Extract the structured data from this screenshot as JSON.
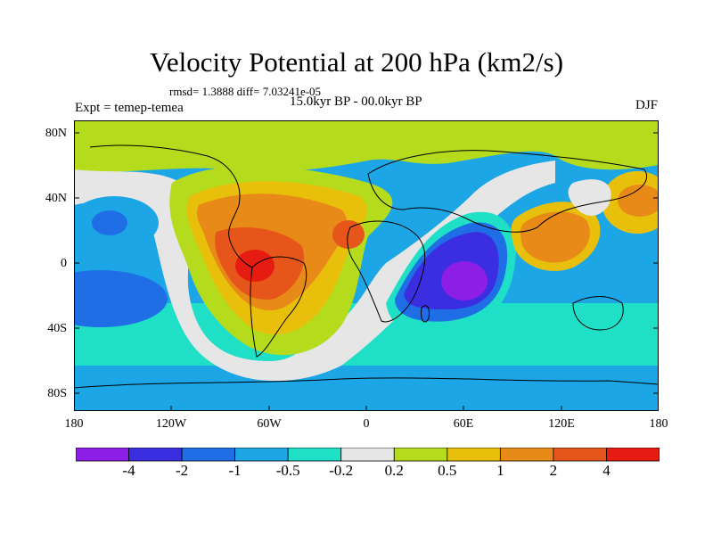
{
  "figure": {
    "title": "Velocity Potential at 200 hPa (km2/s)",
    "stats_line": "rmsd= 1.3888 diff= 7.03241e-05",
    "experiment_label": "Expt = temep-temea",
    "period_label": "15.0kyr BP - 00.0kyr BP",
    "season_label": "DJF"
  },
  "axes": {
    "lat_ticks": [
      "80N",
      "40N",
      "0",
      "40S",
      "80S"
    ],
    "lon_ticks": [
      "180",
      "120W",
      "60W",
      "0",
      "60E",
      "120E",
      "180"
    ]
  },
  "colorbar": {
    "colors": [
      "#8c1ee6",
      "#3b2ee0",
      "#1f6ee6",
      "#1ca6e6",
      "#1fe0c6",
      "#e6e6e6",
      "#b4dc1c",
      "#e8c00c",
      "#e88a18",
      "#e6561a",
      "#e61c12"
    ],
    "tick_labels": [
      "-4",
      "-2",
      "-1",
      "-0.5",
      "-0.2",
      "0.2",
      "0.5",
      "1",
      "2",
      "4"
    ]
  },
  "chart_data": {
    "type": "heatmap",
    "title": "Velocity Potential at 200 hPa (km2/s)",
    "variable": "Velocity Potential",
    "units": "km2/s",
    "level": "200 hPa",
    "x_range": [
      -180,
      180
    ],
    "y_range": [
      -90,
      90
    ],
    "contour_levels": [
      -4,
      -2,
      -1,
      -0.5,
      -0.2,
      0.2,
      0.5,
      1,
      2,
      4
    ],
    "features": [
      {
        "label": "positive maximum, central South America",
        "lon": -70,
        "lat": 0,
        "value": 4
      },
      {
        "label": "negative minimum, western Indian Ocean",
        "lon": 58,
        "lat": -10,
        "value": -4
      },
      {
        "label": "positive, Southeast Asia",
        "lon": 110,
        "lat": 18,
        "value": 2
      },
      {
        "label": "positive, NW Pacific",
        "lon": 165,
        "lat": 40,
        "value": 1
      },
      {
        "label": "negative, central Pacific",
        "lon": -155,
        "lat": 20,
        "value": -1
      },
      {
        "label": "negative, SE Pacific",
        "lon": -160,
        "lat": -25,
        "value": -2
      },
      {
        "label": "positive, Arctic / high northern latitudes",
        "lon": 0,
        "lat": 80,
        "value": 0.5
      }
    ]
  }
}
